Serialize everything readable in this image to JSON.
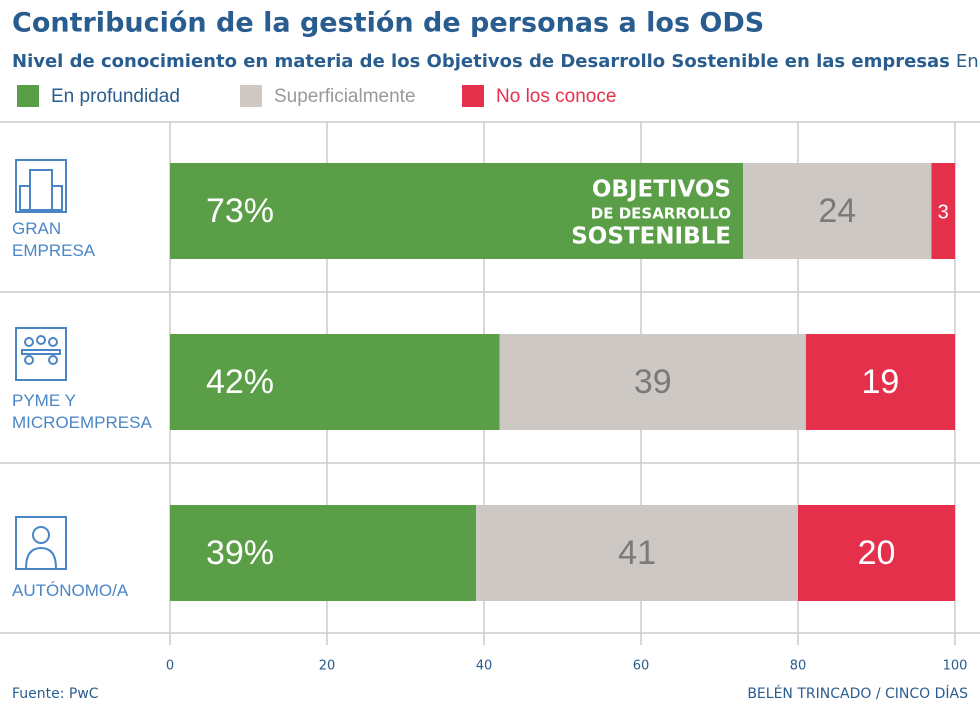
{
  "chart_data": {
    "type": "stacked-bar-horizontal",
    "title": "Contribución de la gestión de personas a los ODS",
    "subtitle": "Nivel de conocimiento en materia de los Objetivos de Desarrollo Sostenible en las empresas",
    "unit_note": "En %",
    "categories": [
      "GRAN EMPRESA",
      "PYME Y MICROEMPRESA",
      "AUTÓNOMO/A"
    ],
    "series": [
      {
        "name": "En profundidad",
        "color": "#5a9e47",
        "values": [
          73,
          42,
          39
        ],
        "value_labels": [
          "73%",
          "42%",
          "39%"
        ]
      },
      {
        "name": "Superficialmente",
        "color": "#cdc8c3",
        "values": [
          24,
          39,
          41
        ]
      },
      {
        "name": "No los conoce",
        "color": "#e5304b",
        "values": [
          3,
          19,
          20
        ]
      }
    ],
    "xlim": [
      0,
      100
    ],
    "xticks": [
      0,
      20,
      40,
      60,
      80,
      100
    ],
    "grid": true,
    "logo_text": [
      "OBJETIVOS",
      "DE DESARROLLO",
      "SOSTENIBLE"
    ],
    "source": "Fuente: PwC",
    "credit": "BELÉN TRINCADO / CINCO DÍAS"
  }
}
